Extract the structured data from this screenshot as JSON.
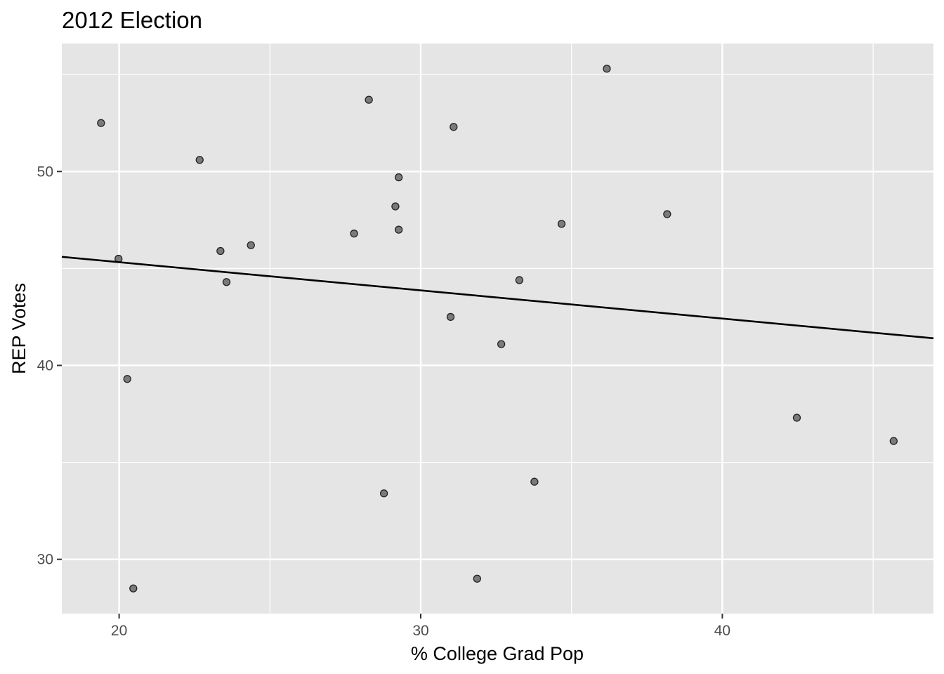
{
  "chart_data": {
    "type": "scatter",
    "title": "2012 Election",
    "xlabel": "% College Grad Pop",
    "ylabel": "REP Votes",
    "xlim": [
      18.1,
      47.0
    ],
    "ylim": [
      27.2,
      56.6
    ],
    "x_ticks": [
      20,
      30,
      40
    ],
    "x_tick_labels": [
      "20",
      "30",
      "40"
    ],
    "x_minor_ticks": [
      25,
      35,
      45
    ],
    "y_ticks": [
      30,
      40,
      50
    ],
    "y_tick_labels": [
      "30",
      "40",
      "50"
    ],
    "y_minor_ticks": [
      35,
      45,
      55
    ],
    "grid": true,
    "panel_color": "#e5e5e5",
    "point_color": "#555555",
    "line_color": "#000000",
    "points": [
      {
        "x": 19.4,
        "y": 52.5
      },
      {
        "x": 19.98,
        "y": 45.5
      },
      {
        "x": 20.27,
        "y": 39.3
      },
      {
        "x": 20.47,
        "y": 28.5
      },
      {
        "x": 22.67,
        "y": 50.6
      },
      {
        "x": 23.36,
        "y": 45.9
      },
      {
        "x": 23.56,
        "y": 44.3
      },
      {
        "x": 24.37,
        "y": 46.2
      },
      {
        "x": 27.79,
        "y": 46.8
      },
      {
        "x": 28.28,
        "y": 53.7
      },
      {
        "x": 28.78,
        "y": 33.4
      },
      {
        "x": 29.16,
        "y": 48.2
      },
      {
        "x": 29.27,
        "y": 49.7
      },
      {
        "x": 29.27,
        "y": 47.0
      },
      {
        "x": 30.99,
        "y": 42.5
      },
      {
        "x": 31.09,
        "y": 52.3
      },
      {
        "x": 31.87,
        "y": 29.0
      },
      {
        "x": 32.67,
        "y": 41.1
      },
      {
        "x": 33.27,
        "y": 44.4
      },
      {
        "x": 33.77,
        "y": 34.0
      },
      {
        "x": 34.67,
        "y": 47.3
      },
      {
        "x": 36.17,
        "y": 55.3
      },
      {
        "x": 38.17,
        "y": 47.8
      },
      {
        "x": 42.47,
        "y": 37.3
      },
      {
        "x": 45.68,
        "y": 36.1
      }
    ],
    "trend_line": {
      "x": [
        18.1,
        47.0
      ],
      "y": [
        45.6,
        41.4
      ]
    }
  }
}
